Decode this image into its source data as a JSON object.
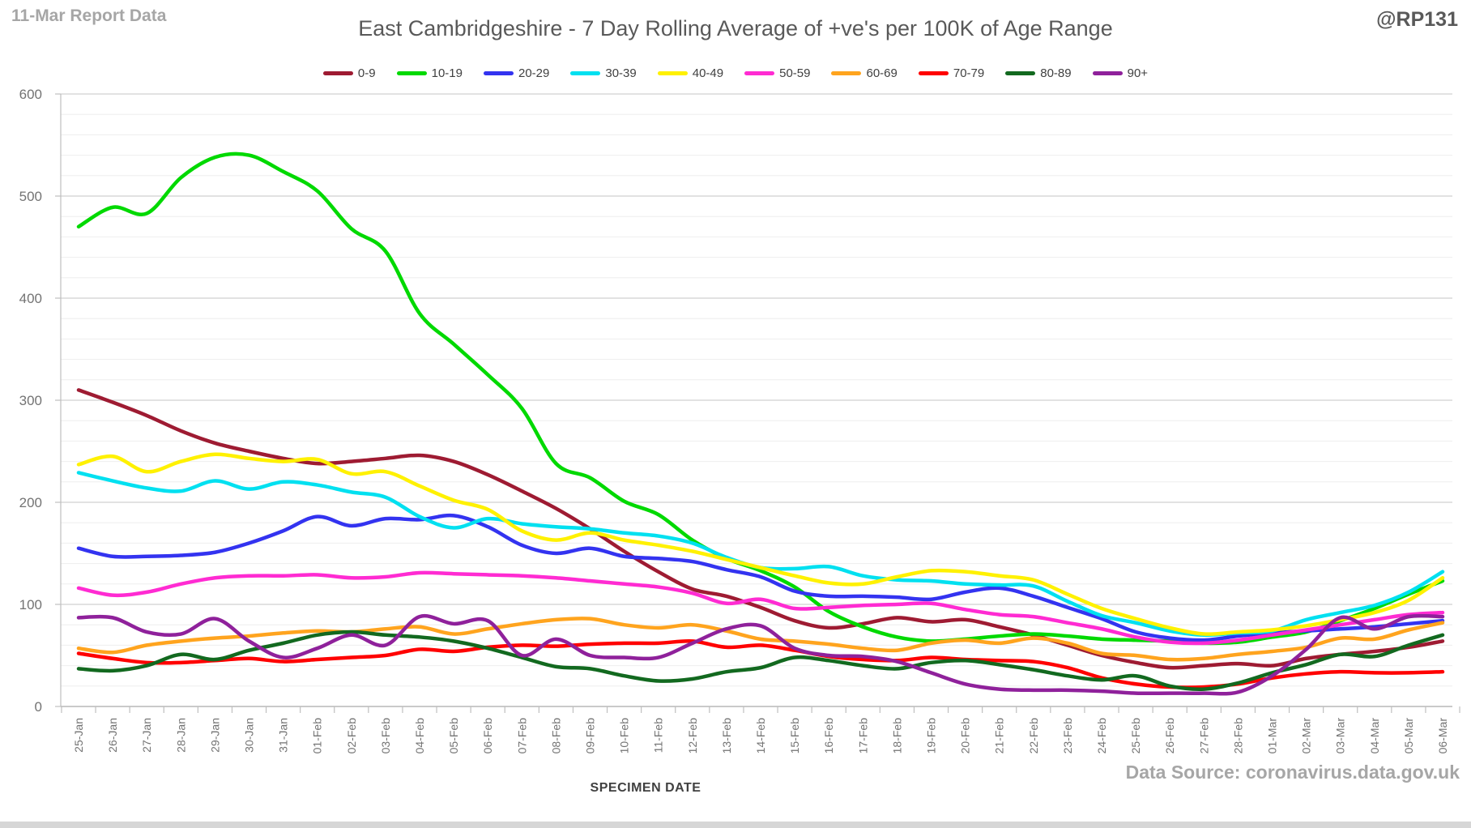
{
  "header": {
    "report_label": "11-Mar Report Data",
    "title": "East Cambridgeshire - 7 Day Rolling Average of +ve's per 100K of Age Range",
    "handle": "@RP131"
  },
  "footer": {
    "xaxis_title": "SPECIMEN DATE",
    "source": "Data Source: coronavirus.data.gov.uk"
  },
  "chart_data": {
    "type": "line",
    "title": "East Cambridgeshire - 7 Day Rolling Average of +ve's per 100K of Age Range",
    "xlabel": "SPECIMEN DATE",
    "ylabel": "",
    "ylim": [
      0,
      600
    ],
    "yticks": [
      0,
      100,
      200,
      300,
      400,
      500,
      600
    ],
    "minor_grid_step": 20,
    "grid": true,
    "legend_position": "top",
    "x": [
      "25-Jan",
      "26-Jan",
      "27-Jan",
      "28-Jan",
      "29-Jan",
      "30-Jan",
      "31-Jan",
      "01-Feb",
      "02-Feb",
      "03-Feb",
      "04-Feb",
      "05-Feb",
      "06-Feb",
      "07-Feb",
      "08-Feb",
      "09-Feb",
      "10-Feb",
      "11-Feb",
      "12-Feb",
      "13-Feb",
      "14-Feb",
      "15-Feb",
      "16-Feb",
      "17-Feb",
      "18-Feb",
      "19-Feb",
      "20-Feb",
      "21-Feb",
      "22-Feb",
      "23-Feb",
      "24-Feb",
      "25-Feb",
      "26-Feb",
      "27-Feb",
      "28-Feb",
      "01-Mar",
      "02-Mar",
      "03-Mar",
      "04-Mar",
      "05-Mar",
      "06-Mar"
    ],
    "series": [
      {
        "name": "0-9",
        "color": "#9e1b32",
        "values": [
          310,
          298,
          285,
          270,
          258,
          250,
          243,
          238,
          240,
          243,
          246,
          240,
          227,
          211,
          194,
          174,
          152,
          132,
          115,
          108,
          97,
          84,
          77,
          81,
          87,
          83,
          85,
          78,
          70,
          60,
          50,
          43,
          38,
          40,
          42,
          40,
          47,
          51,
          54,
          58,
          64
        ]
      },
      {
        "name": "10-19",
        "color": "#00d900",
        "values": [
          470,
          489,
          483,
          518,
          538,
          540,
          524,
          505,
          468,
          446,
          385,
          355,
          325,
          292,
          238,
          224,
          201,
          188,
          163,
          145,
          133,
          117,
          93,
          78,
          68,
          64,
          66,
          69,
          71,
          69,
          66,
          65,
          64,
          62,
          63,
          68,
          73,
          84,
          96,
          110,
          123
        ]
      },
      {
        "name": "20-29",
        "color": "#3333f0",
        "values": [
          155,
          147,
          147,
          148,
          151,
          160,
          172,
          186,
          177,
          184,
          183,
          187,
          176,
          158,
          150,
          155,
          147,
          145,
          142,
          134,
          127,
          113,
          108,
          108,
          107,
          105,
          112,
          116,
          108,
          97,
          86,
          73,
          67,
          65,
          69,
          72,
          74,
          76,
          78,
          81,
          84
        ]
      },
      {
        "name": "30-39",
        "color": "#00e0f0",
        "values": [
          229,
          221,
          214,
          211,
          221,
          213,
          220,
          217,
          210,
          205,
          186,
          175,
          184,
          179,
          176,
          174,
          170,
          167,
          160,
          146,
          136,
          135,
          137,
          128,
          124,
          123,
          120,
          119,
          118,
          103,
          89,
          82,
          74,
          70,
          72,
          74,
          85,
          92,
          99,
          112,
          132
        ]
      },
      {
        "name": "40-49",
        "color": "#fff100",
        "values": [
          237,
          245,
          230,
          240,
          247,
          243,
          240,
          242,
          228,
          230,
          216,
          202,
          193,
          172,
          163,
          170,
          163,
          158,
          152,
          144,
          136,
          128,
          121,
          120,
          127,
          133,
          132,
          128,
          124,
          110,
          96,
          86,
          77,
          71,
          73,
          75,
          79,
          85,
          92,
          104,
          126
        ]
      },
      {
        "name": "50-59",
        "color": "#ff2bd2",
        "values": [
          116,
          109,
          112,
          120,
          126,
          128,
          128,
          129,
          126,
          127,
          131,
          130,
          129,
          128,
          126,
          123,
          120,
          117,
          111,
          101,
          105,
          96,
          97,
          99,
          100,
          101,
          95,
          90,
          88,
          82,
          76,
          68,
          63,
          62,
          65,
          70,
          75,
          80,
          85,
          90,
          92
        ]
      },
      {
        "name": "60-69",
        "color": "#ffa41e",
        "values": [
          57,
          53,
          60,
          64,
          67,
          69,
          72,
          74,
          73,
          76,
          78,
          71,
          76,
          81,
          85,
          86,
          80,
          77,
          80,
          74,
          66,
          64,
          61,
          57,
          55,
          62,
          65,
          62,
          67,
          62,
          52,
          50,
          46,
          47,
          51,
          54,
          58,
          67,
          66,
          75,
          82
        ]
      },
      {
        "name": "70-79",
        "color": "#ff0000",
        "values": [
          52,
          47,
          43,
          43,
          45,
          47,
          44,
          46,
          48,
          50,
          56,
          54,
          58,
          60,
          59,
          61,
          62,
          62,
          64,
          58,
          60,
          55,
          49,
          46,
          45,
          48,
          46,
          45,
          44,
          38,
          28,
          22,
          19,
          19,
          22,
          28,
          32,
          34,
          33,
          33,
          34
        ]
      },
      {
        "name": "80-89",
        "color": "#12691f",
        "values": [
          37,
          35,
          40,
          51,
          46,
          55,
          62,
          70,
          73,
          70,
          68,
          64,
          57,
          48,
          39,
          37,
          30,
          25,
          27,
          34,
          38,
          48,
          45,
          40,
          37,
          43,
          45,
          41,
          36,
          30,
          26,
          30,
          20,
          17,
          23,
          33,
          41,
          51,
          49,
          60,
          70
        ]
      },
      {
        "name": "90+",
        "color": "#8f219b",
        "values": [
          87,
          87,
          73,
          71,
          86,
          64,
          48,
          57,
          70,
          60,
          88,
          81,
          84,
          50,
          66,
          50,
          48,
          48,
          62,
          76,
          79,
          57,
          50,
          49,
          44,
          33,
          22,
          17,
          16,
          16,
          15,
          13,
          13,
          13,
          14,
          30,
          56,
          87,
          76,
          88,
          88
        ]
      }
    ]
  },
  "style": {
    "minor_grid_color": "#eeeeee",
    "major_grid_color": "#d8d8d8",
    "axis_color": "#bfbfbf",
    "tick_label_color": "#737373"
  }
}
